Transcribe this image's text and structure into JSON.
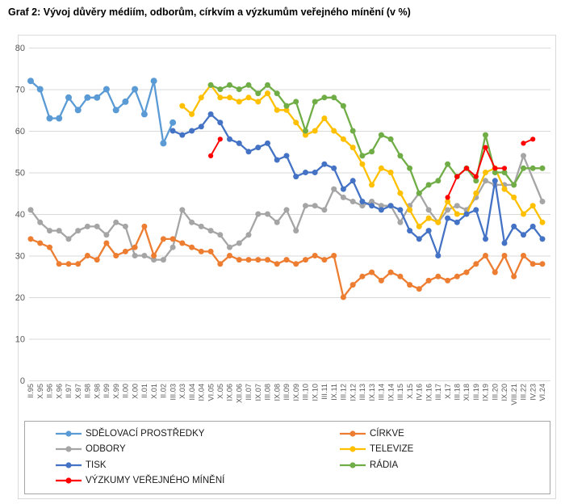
{
  "title": "Graf 2: Vývoj důvěry médiím, odborům, církvím a výzkumům veřejného mínění (v %)",
  "chart_data": {
    "type": "line",
    "title": "Graf 2: Vývoj důvěry médiím, odborům, církvím a výzkumům veřejného mínění (v %)",
    "xlabel": "",
    "ylabel": "",
    "ylim": [
      0,
      80
    ],
    "ytick_step": 10,
    "yticks": [
      "0",
      "10",
      "20",
      "30",
      "40",
      "50",
      "60",
      "70",
      "80"
    ],
    "grid": true,
    "legend_position": "bottom",
    "categories": [
      "II.95",
      "X.95",
      "II.96",
      "X.96",
      "II.97",
      "X.97",
      "II.98",
      "X.98",
      "II.99",
      "X.99",
      "II.00",
      "X.00",
      "II.01",
      "X.01",
      "II.02",
      "III.03",
      "X.03",
      "III.04",
      "IX.04",
      "VI.05",
      "X.05",
      "IX.06",
      "XII.06",
      "III.07",
      "IX.07",
      "III.08",
      "IX.08",
      "III.09",
      "IX.09",
      "III.10",
      "IX.10",
      "III.11",
      "IX.11",
      "III.12",
      "IX.12",
      "III.13",
      "IX.13",
      "III.14",
      "IX.14",
      "III.15",
      "X.15",
      "IV.16",
      "IX.16",
      "III.17",
      "X.17",
      "III.18",
      "XI.18",
      "III.19",
      "IX.19",
      "III.20",
      "IX.20",
      "VIII.21",
      "III.22",
      "IV.23",
      "VI.24"
    ],
    "series": [
      {
        "name": "ODBORY",
        "color": "#A5A5A5",
        "connect_gaps": true,
        "values": [
          41,
          38,
          36,
          36,
          34,
          36,
          37,
          37,
          35,
          38,
          37,
          30,
          30,
          29,
          29,
          32,
          41,
          38,
          37,
          36,
          35,
          32,
          33,
          35,
          40,
          40,
          38,
          41,
          36,
          42,
          42,
          41,
          46,
          44,
          43,
          42,
          43,
          42,
          42,
          38,
          42,
          45,
          41,
          38,
          41,
          42,
          41,
          44,
          48,
          47,
          47,
          47,
          54,
          null,
          43
        ]
      },
      {
        "name": "CÍRKVE",
        "color": "#ED7D31",
        "connect_gaps": true,
        "values": [
          34,
          33,
          32,
          28,
          28,
          28,
          30,
          29,
          33,
          30,
          31,
          32,
          37,
          30,
          34,
          34,
          33,
          32,
          31,
          31,
          28,
          30,
          29,
          29,
          29,
          29,
          28,
          29,
          28,
          29,
          30,
          29,
          30,
          20,
          23,
          25,
          26,
          24,
          26,
          25,
          23,
          22,
          24,
          25,
          24,
          25,
          26,
          28,
          30,
          26,
          30,
          25,
          30,
          28,
          28
        ]
      },
      {
        "name": "TELEVIZE",
        "color": "#FFC000",
        "connect_gaps": true,
        "values": [
          null,
          null,
          null,
          null,
          null,
          null,
          null,
          null,
          null,
          null,
          null,
          null,
          null,
          null,
          null,
          null,
          66,
          64,
          68,
          71,
          68,
          68,
          67,
          68,
          67,
          69,
          65,
          65,
          62,
          59,
          60,
          63,
          60,
          58,
          56,
          52,
          47,
          51,
          50,
          45,
          41,
          37,
          39,
          38,
          43,
          40,
          40,
          45,
          50,
          51,
          46,
          44,
          40,
          42,
          38
        ]
      },
      {
        "name": "RÁDIA",
        "color": "#70AD47",
        "connect_gaps": true,
        "values": [
          null,
          null,
          null,
          null,
          null,
          null,
          null,
          null,
          null,
          null,
          null,
          null,
          null,
          null,
          null,
          null,
          null,
          null,
          null,
          71,
          70,
          71,
          70,
          71,
          69,
          71,
          69,
          66,
          67,
          60,
          67,
          68,
          68,
          66,
          60,
          54,
          55,
          59,
          58,
          54,
          51,
          45,
          47,
          48,
          52,
          49,
          51,
          48,
          59,
          50,
          50,
          47,
          51,
          51,
          51
        ]
      },
      {
        "name": "SDĚLOVACÍ PROSTŘEDKY",
        "color": "#5B9BD5",
        "connect_gaps": true,
        "marker_r": 4,
        "values": [
          72,
          70,
          63,
          63,
          68,
          65,
          68,
          68,
          70,
          65,
          67,
          70,
          64,
          72,
          57,
          62,
          null,
          null,
          null,
          null,
          null,
          null,
          null,
          null,
          null,
          null,
          null,
          null,
          null,
          null,
          null,
          null,
          null,
          null,
          null,
          null,
          null,
          null,
          null,
          null,
          null,
          null,
          null,
          null,
          null,
          null,
          null,
          null,
          null,
          null,
          null,
          null,
          null,
          null,
          null
        ]
      },
      {
        "name": "TISK",
        "color": "#4472C4",
        "connect_gaps": true,
        "values": [
          null,
          null,
          null,
          null,
          null,
          null,
          null,
          null,
          null,
          null,
          null,
          null,
          null,
          null,
          null,
          60,
          59,
          60,
          61,
          64,
          62,
          58,
          57,
          55,
          56,
          57,
          53,
          54,
          49,
          50,
          50,
          52,
          51,
          46,
          48,
          43,
          42,
          41,
          42,
          41,
          36,
          34,
          36,
          30,
          39,
          38,
          40,
          41,
          34,
          48,
          33,
          37,
          35,
          37,
          34
        ]
      },
      {
        "name": "VÝZKUMY VEŘEJNÉHO MÍNĚNÍ",
        "color": "#FF0000",
        "connect_gaps": false,
        "marker_r": 3.1,
        "line_w": 1.9,
        "values": [
          null,
          null,
          null,
          null,
          null,
          null,
          null,
          null,
          null,
          null,
          null,
          null,
          null,
          null,
          null,
          null,
          null,
          null,
          null,
          54,
          58,
          null,
          null,
          null,
          null,
          null,
          null,
          null,
          null,
          null,
          null,
          null,
          null,
          null,
          null,
          null,
          null,
          null,
          null,
          null,
          null,
          null,
          null,
          null,
          44,
          49,
          51,
          49,
          56,
          51,
          51,
          null,
          57,
          58,
          null
        ]
      }
    ],
    "legend_columns": [
      [
        "SDĚLOVACÍ PROSTŘEDKY",
        "ODBORY",
        "TISK",
        "VÝZKUMY VEŘEJNÉHO MÍNĚNÍ"
      ],
      [
        "CÍRKVE",
        "TELEVIZE",
        "RÁDIA"
      ]
    ]
  },
  "layout_text": {
    "note": ""
  }
}
